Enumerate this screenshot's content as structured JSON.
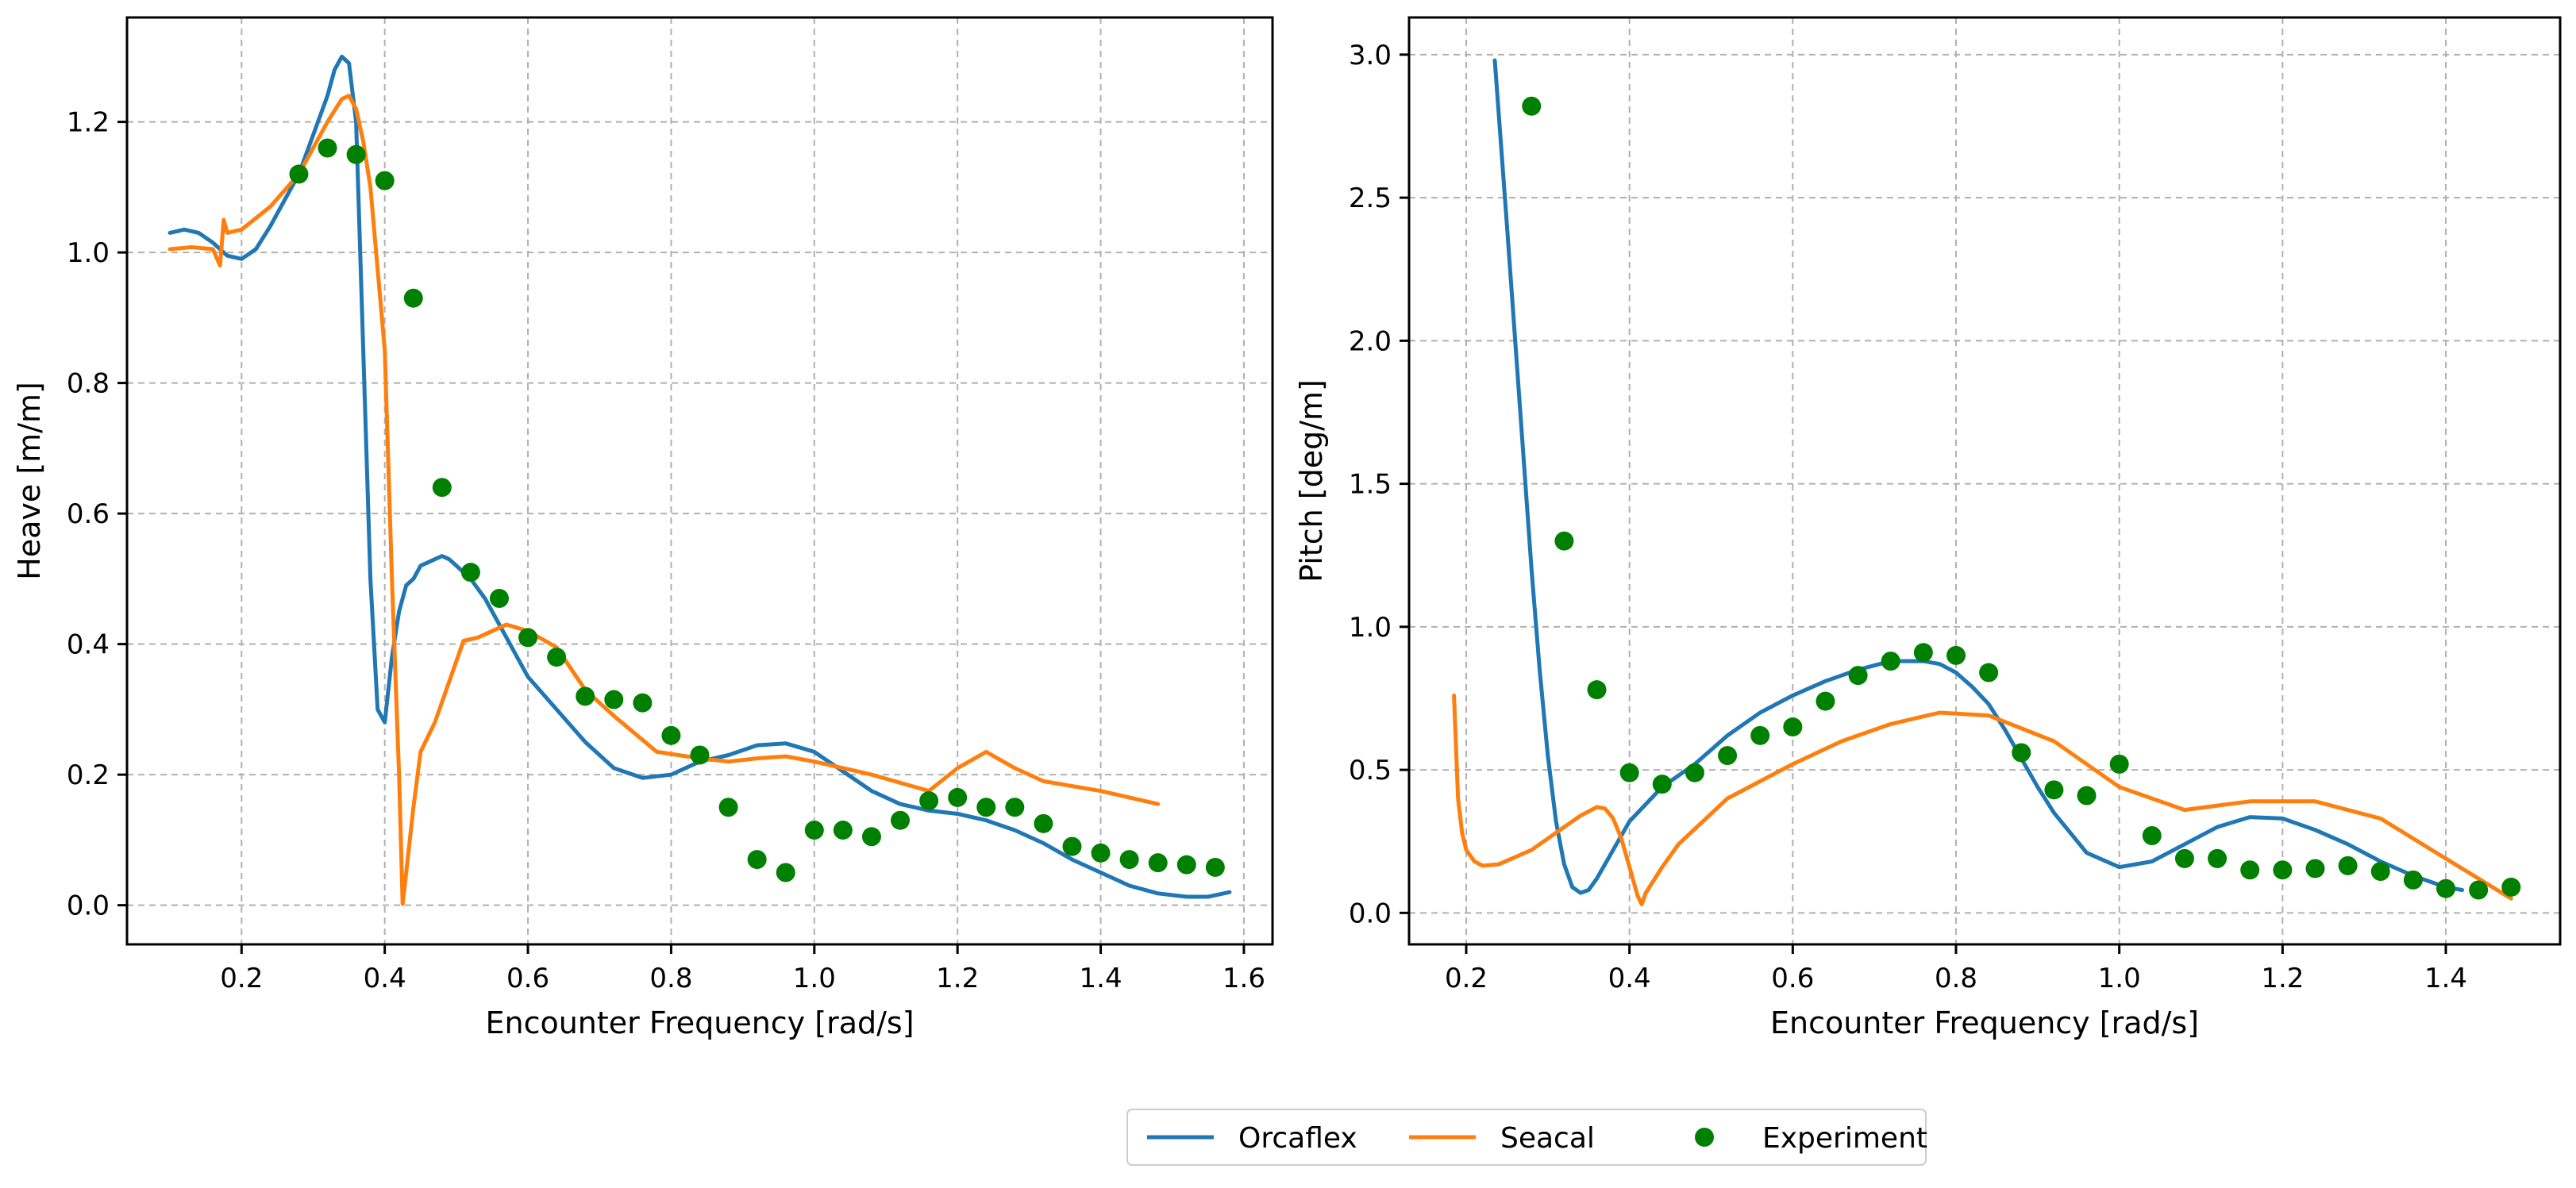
{
  "chart_data": [
    {
      "type": "line",
      "title": "",
      "xlabel": "Encounter Frequency [rad/s]",
      "ylabel": "Heave [m/m]",
      "xlim": [
        0.04,
        1.64
      ],
      "ylim": [
        -0.06,
        1.36
      ],
      "xticks": [
        0.2,
        0.4,
        0.6,
        0.8,
        1.0,
        1.2,
        1.4,
        1.6
      ],
      "xtick_labels": [
        "0.2",
        "0.4",
        "0.6",
        "0.8",
        "1.0",
        "1.2",
        "1.4",
        "1.6"
      ],
      "yticks": [
        0.0,
        0.2,
        0.4,
        0.6,
        0.8,
        1.0,
        1.2
      ],
      "ytick_labels": [
        "0.0",
        "0.2",
        "0.4",
        "0.6",
        "0.8",
        "1.0",
        "1.2"
      ],
      "grid": true,
      "series": [
        {
          "name": "Orcaflex",
          "kind": "line",
          "color": "#1f77b4",
          "x": [
            0.1,
            0.12,
            0.14,
            0.16,
            0.18,
            0.2,
            0.22,
            0.24,
            0.26,
            0.28,
            0.3,
            0.32,
            0.33,
            0.34,
            0.35,
            0.36,
            0.37,
            0.38,
            0.39,
            0.4,
            0.41,
            0.42,
            0.43,
            0.44,
            0.45,
            0.46,
            0.47,
            0.48,
            0.49,
            0.5,
            0.52,
            0.54,
            0.56,
            0.58,
            0.6,
            0.64,
            0.68,
            0.72,
            0.76,
            0.8,
            0.84,
            0.88,
            0.92,
            0.96,
            1.0,
            1.04,
            1.08,
            1.12,
            1.16,
            1.2,
            1.24,
            1.28,
            1.32,
            1.36,
            1.4,
            1.44,
            1.48,
            1.52,
            1.55,
            1.58
          ],
          "y": [
            1.03,
            1.035,
            1.03,
            1.015,
            0.995,
            0.99,
            1.005,
            1.04,
            1.08,
            1.12,
            1.18,
            1.24,
            1.28,
            1.3,
            1.29,
            1.2,
            0.85,
            0.5,
            0.3,
            0.28,
            0.38,
            0.45,
            0.49,
            0.5,
            0.52,
            0.525,
            0.53,
            0.535,
            0.53,
            0.52,
            0.5,
            0.47,
            0.43,
            0.39,
            0.35,
            0.3,
            0.25,
            0.21,
            0.195,
            0.2,
            0.22,
            0.23,
            0.245,
            0.248,
            0.235,
            0.205,
            0.175,
            0.155,
            0.145,
            0.14,
            0.13,
            0.115,
            0.095,
            0.07,
            0.05,
            0.03,
            0.018,
            0.013,
            0.013,
            0.02
          ]
        },
        {
          "name": "Seacal",
          "kind": "line",
          "color": "#ff7f0e",
          "x": [
            0.1,
            0.13,
            0.16,
            0.17,
            0.175,
            0.18,
            0.2,
            0.24,
            0.28,
            0.32,
            0.34,
            0.35,
            0.36,
            0.37,
            0.38,
            0.4,
            0.41,
            0.42,
            0.425,
            0.43,
            0.44,
            0.45,
            0.47,
            0.51,
            0.53,
            0.55,
            0.57,
            0.6,
            0.64,
            0.68,
            0.72,
            0.78,
            0.84,
            0.88,
            0.92,
            0.96,
            1.0,
            1.08,
            1.16,
            1.2,
            1.24,
            1.28,
            1.32,
            1.4,
            1.48
          ],
          "y": [
            1.005,
            1.008,
            1.005,
            0.98,
            1.05,
            1.03,
            1.035,
            1.07,
            1.12,
            1.2,
            1.235,
            1.24,
            1.22,
            1.17,
            1.1,
            0.85,
            0.5,
            0.2,
            0.002,
            0.05,
            0.15,
            0.235,
            0.28,
            0.405,
            0.41,
            0.42,
            0.43,
            0.42,
            0.395,
            0.33,
            0.29,
            0.235,
            0.225,
            0.22,
            0.225,
            0.228,
            0.22,
            0.2,
            0.175,
            0.21,
            0.235,
            0.21,
            0.19,
            0.175,
            0.155
          ]
        },
        {
          "name": "Experiment",
          "kind": "scatter",
          "color": "#008000",
          "x": [
            0.28,
            0.32,
            0.36,
            0.4,
            0.44,
            0.48,
            0.52,
            0.56,
            0.6,
            0.64,
            0.68,
            0.72,
            0.76,
            0.8,
            0.84,
            0.88,
            0.92,
            0.96,
            1.0,
            1.04,
            1.08,
            1.12,
            1.16,
            1.2,
            1.24,
            1.28,
            1.32,
            1.36,
            1.4,
            1.44,
            1.48,
            1.52,
            1.56
          ],
          "y": [
            1.12,
            1.16,
            1.15,
            1.11,
            0.93,
            0.64,
            0.51,
            0.47,
            0.41,
            0.38,
            0.32,
            0.315,
            0.31,
            0.26,
            0.23,
            0.15,
            0.07,
            0.05,
            0.115,
            0.115,
            0.105,
            0.13,
            0.16,
            0.165,
            0.15,
            0.15,
            0.125,
            0.09,
            0.08,
            0.07,
            0.065,
            0.062,
            0.058
          ]
        }
      ]
    },
    {
      "type": "line",
      "title": "",
      "xlabel": "Encounter Frequency [rad/s]",
      "ylabel": "Pitch [deg/m]",
      "xlim": [
        0.13,
        1.54
      ],
      "ylim": [
        -0.11,
        3.13
      ],
      "xticks": [
        0.2,
        0.4,
        0.6,
        0.8,
        1.0,
        1.2,
        1.4
      ],
      "xtick_labels": [
        "0.2",
        "0.4",
        "0.6",
        "0.8",
        "1.0",
        "1.2",
        "1.4"
      ],
      "yticks": [
        0.0,
        0.5,
        1.0,
        1.5,
        2.0,
        2.5,
        3.0
      ],
      "ytick_labels": [
        "0.0",
        "0.5",
        "1.0",
        "1.5",
        "2.0",
        "2.5",
        "3.0"
      ],
      "grid": true,
      "series": [
        {
          "name": "Orcaflex",
          "kind": "line",
          "color": "#1f77b4",
          "x": [
            0.235,
            0.25,
            0.26,
            0.27,
            0.28,
            0.29,
            0.3,
            0.31,
            0.32,
            0.33,
            0.34,
            0.35,
            0.36,
            0.38,
            0.4,
            0.44,
            0.48,
            0.52,
            0.56,
            0.6,
            0.64,
            0.68,
            0.72,
            0.76,
            0.78,
            0.8,
            0.82,
            0.84,
            0.86,
            0.88,
            0.9,
            0.92,
            0.96,
            1.0,
            1.04,
            1.08,
            1.12,
            1.16,
            1.2,
            1.24,
            1.28,
            1.32,
            1.36,
            1.4,
            1.42
          ],
          "y": [
            2.98,
            2.4,
            2.0,
            1.6,
            1.2,
            0.85,
            0.55,
            0.32,
            0.17,
            0.09,
            0.07,
            0.08,
            0.12,
            0.22,
            0.32,
            0.44,
            0.52,
            0.62,
            0.7,
            0.76,
            0.81,
            0.85,
            0.88,
            0.88,
            0.87,
            0.84,
            0.79,
            0.73,
            0.64,
            0.54,
            0.44,
            0.35,
            0.21,
            0.16,
            0.18,
            0.24,
            0.3,
            0.335,
            0.33,
            0.29,
            0.24,
            0.18,
            0.13,
            0.09,
            0.08
          ]
        },
        {
          "name": "Seacal",
          "kind": "line",
          "color": "#ff7f0e",
          "x": [
            0.185,
            0.19,
            0.195,
            0.2,
            0.21,
            0.22,
            0.24,
            0.28,
            0.32,
            0.34,
            0.36,
            0.37,
            0.38,
            0.39,
            0.4,
            0.41,
            0.415,
            0.42,
            0.44,
            0.46,
            0.52,
            0.6,
            0.66,
            0.72,
            0.78,
            0.84,
            0.92,
            1.0,
            1.08,
            1.16,
            1.24,
            1.32,
            1.4,
            1.48
          ],
          "y": [
            0.76,
            0.4,
            0.28,
            0.22,
            0.18,
            0.165,
            0.17,
            0.22,
            0.3,
            0.34,
            0.37,
            0.365,
            0.33,
            0.26,
            0.16,
            0.06,
            0.03,
            0.07,
            0.16,
            0.24,
            0.4,
            0.52,
            0.6,
            0.66,
            0.7,
            0.69,
            0.6,
            0.44,
            0.36,
            0.39,
            0.39,
            0.33,
            0.19,
            0.05
          ]
        },
        {
          "name": "Experiment",
          "kind": "scatter",
          "color": "#008000",
          "x": [
            0.28,
            0.32,
            0.36,
            0.4,
            0.44,
            0.48,
            0.52,
            0.56,
            0.6,
            0.64,
            0.68,
            0.72,
            0.76,
            0.8,
            0.84,
            0.88,
            0.92,
            0.96,
            1.0,
            1.04,
            1.08,
            1.12,
            1.16,
            1.2,
            1.24,
            1.28,
            1.32,
            1.36,
            1.4,
            1.44,
            1.48
          ],
          "y": [
            2.82,
            1.3,
            0.78,
            0.49,
            0.45,
            0.49,
            0.55,
            0.62,
            0.65,
            0.74,
            0.83,
            0.88,
            0.91,
            0.9,
            0.84,
            0.56,
            0.43,
            0.41,
            0.52,
            0.27,
            0.19,
            0.19,
            0.15,
            0.15,
            0.155,
            0.165,
            0.145,
            0.115,
            0.085,
            0.08,
            0.09
          ]
        }
      ]
    }
  ],
  "legend": {
    "placement": "bottom-center",
    "entries": [
      {
        "label": "Orcaflex",
        "kind": "line",
        "color": "#1f77b4"
      },
      {
        "label": "Seacal",
        "kind": "line",
        "color": "#ff7f0e"
      },
      {
        "label": "Experiment",
        "kind": "scatter",
        "color": "#008000"
      }
    ]
  }
}
